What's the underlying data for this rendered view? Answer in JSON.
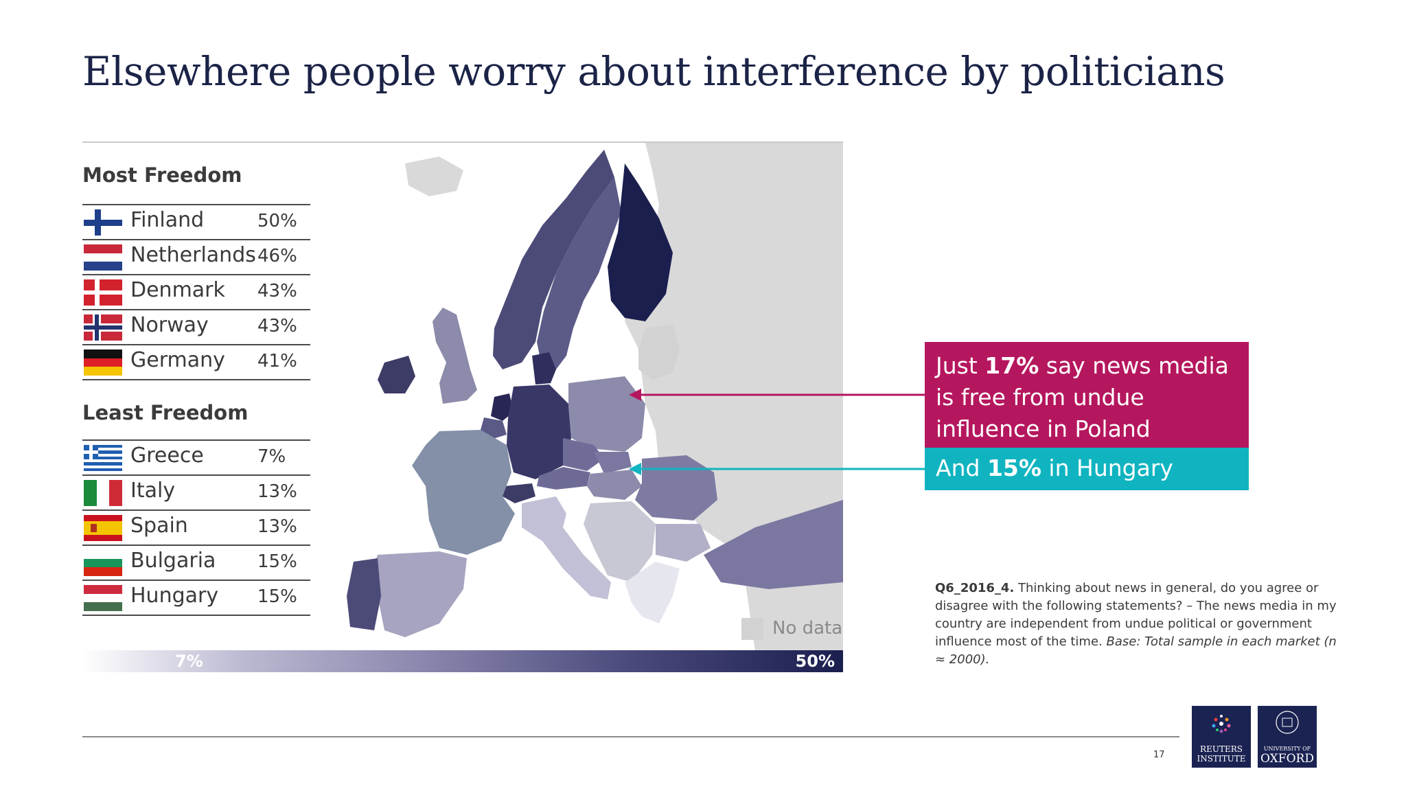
{
  "title": "Elsewhere people worry about interference by politicians",
  "most_freedom": {
    "heading": "Most Freedom",
    "rows": [
      {
        "country": "Finland",
        "pct": "50%"
      },
      {
        "country": "Netherlands",
        "pct": "46%"
      },
      {
        "country": "Denmark",
        "pct": "43%"
      },
      {
        "country": "Norway",
        "pct": "43%"
      },
      {
        "country": "Germany",
        "pct": "41%"
      }
    ]
  },
  "least_freedom": {
    "heading": "Least Freedom",
    "rows": [
      {
        "country": "Greece",
        "pct": "7%"
      },
      {
        "country": "Italy",
        "pct": "13%"
      },
      {
        "country": "Spain",
        "pct": "13%"
      },
      {
        "country": "Bulgaria",
        "pct": "15%"
      },
      {
        "country": "Hungary",
        "pct": "15%"
      }
    ]
  },
  "legend": {
    "min": "7%",
    "max": "50%",
    "no_data": "No data",
    "min_color": "#ffffff",
    "max_color": "#1b1f4e",
    "no_data_color": "#d2d2d2"
  },
  "callout_poland": {
    "pre": "Just ",
    "value": "17%",
    "post": " say news media is free from undue influence in Poland",
    "color": "#b5175e"
  },
  "callout_hungary": {
    "pre": "And ",
    "value": "15%",
    "post": " in Hungary",
    "color": "#10b4c0"
  },
  "question": {
    "code": "Q6_2016_4.",
    "text": " Thinking about news in general, do you agree or disagree with the following statements? – The news media in my country are independent from undue political or government influence most of the time. ",
    "base": "Base: Total sample in each market (n ≈ 2000)."
  },
  "page_number": "17",
  "logos": {
    "reuters": {
      "line1": "REUTERS",
      "line2": "INSTITUTE"
    },
    "oxford": {
      "small": "UNIVERSITY OF",
      "big": "OXFORD"
    }
  }
}
